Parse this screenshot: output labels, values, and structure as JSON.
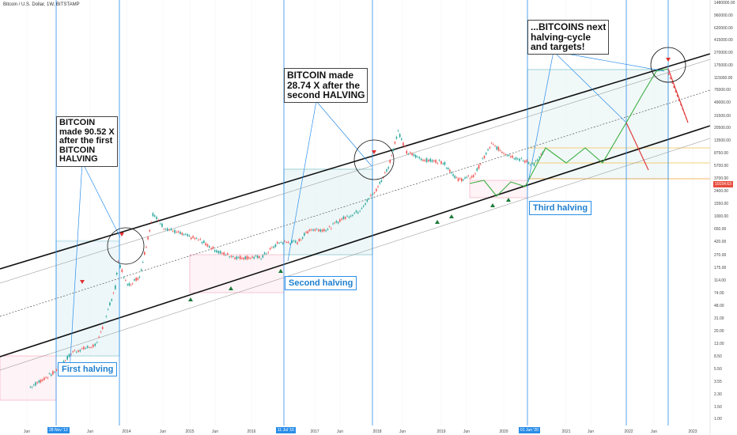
{
  "header": {
    "title": "Bitcoin / U.S. Dollar, 1W, BITSTAMP"
  },
  "annotations": {
    "first": "BITCOIN\nmade 90.52 X\nafter the first\nBITCOIN\nHALVING",
    "second": "BITCOIN made\n28.74 X after the\nsecond HALVING",
    "next": "...BITCOINS next\nhalving-cycle\nand targets!"
  },
  "halvings": {
    "first": "First halving",
    "second": "Second halving",
    "third": "Third halving"
  },
  "date_tags": {
    "first": "28 Nov '12",
    "second": "11 Jul '16",
    "third": "01 Jun '20"
  },
  "current_price": "10154.63",
  "colors": {
    "up": "#26a69a",
    "down": "#ef5350",
    "halving_line": "#2a8ee8",
    "arrow_up": "#3cb043",
    "arrow_down": "#e03030"
  },
  "chart_data": {
    "type": "line",
    "yscale": "log",
    "ylim": [
      1,
      1500000
    ],
    "y_ticks": [
      "1480000.00",
      "960000.00",
      "620000.00",
      "415000.00",
      "270000.00",
      "175000.00",
      "115000.00",
      "75000.00",
      "49000.00",
      "31500.00",
      "20500.00",
      "13500.00",
      "8750.00",
      "5700.00",
      "3700.00",
      "2400.00",
      "1550.00",
      "1000.00",
      "650.00",
      "420.00",
      "270.00",
      "175.00",
      "114.00",
      "74.00",
      "48.00",
      "31.00",
      "20.00",
      "13.00",
      "8.50",
      "5.50",
      "3.55",
      "2.30",
      "1.50",
      "1.00"
    ],
    "x_ticks": [
      "Jun",
      "Jun",
      "2014",
      "Jun",
      "2015",
      "Jun",
      "2016",
      "2017",
      "Jun",
      "2018",
      "Jun",
      "2019",
      "Jun",
      "2020",
      "2021",
      "Jun",
      "2022",
      "Jun",
      "2023"
    ],
    "price_series": {
      "x": [
        2011.9,
        2012.3,
        2012.6,
        2012.9,
        2013.0,
        2013.3,
        2013.35,
        2013.5,
        2013.7,
        2013.92,
        2014.1,
        2014.4,
        2014.7,
        2015.0,
        2015.3,
        2015.7,
        2016.0,
        2016.3,
        2016.5,
        2016.8,
        2017.0,
        2017.3,
        2017.6,
        2017.8,
        2017.96,
        2018.1,
        2018.4,
        2018.7,
        2018.95,
        2019.2,
        2019.5,
        2019.7,
        2019.9,
        2020.2,
        2020.4
      ],
      "y": [
        3,
        5,
        10,
        12,
        13,
        90,
        220,
        95,
        130,
        1100,
        700,
        550,
        450,
        300,
        250,
        250,
        420,
        420,
        650,
        650,
        900,
        1200,
        2500,
        5500,
        19000,
        9000,
        7000,
        6500,
        3500,
        4000,
        12000,
        9000,
        7500,
        6000,
        10154
      ]
    },
    "halving_dates": [
      "2012-11-28",
      "2016-07-11",
      "2020-06-01"
    ],
    "multiples": [
      90.52,
      28.74
    ]
  }
}
